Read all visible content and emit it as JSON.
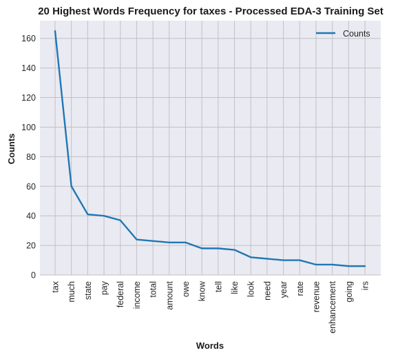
{
  "chart_data": {
    "type": "line",
    "title": "20 Highest Words Frequency for taxes - Processed EDA-3 Training Set",
    "xlabel": "Words",
    "ylabel": "Counts",
    "categories": [
      "tax",
      "much",
      "state",
      "pay",
      "federal",
      "income",
      "total",
      "amount",
      "owe",
      "know",
      "tell",
      "like",
      "look",
      "need",
      "year",
      "rate",
      "revenue",
      "enhancement",
      "going",
      "irs"
    ],
    "series": [
      {
        "name": "Counts",
        "values": [
          165,
          60,
          41,
          40,
          37,
          24,
          23,
          22,
          22,
          18,
          18,
          17,
          12,
          11,
          10,
          10,
          7,
          7,
          6,
          6
        ],
        "color": "#1f77b4"
      }
    ],
    "ylim": [
      0,
      172
    ],
    "yticks": [
      0,
      20,
      40,
      60,
      80,
      100,
      120,
      140,
      160
    ],
    "grid": true,
    "legend_position": "top-right",
    "background_color": "#eaeaf2",
    "grid_color": "#c0c0c4"
  }
}
